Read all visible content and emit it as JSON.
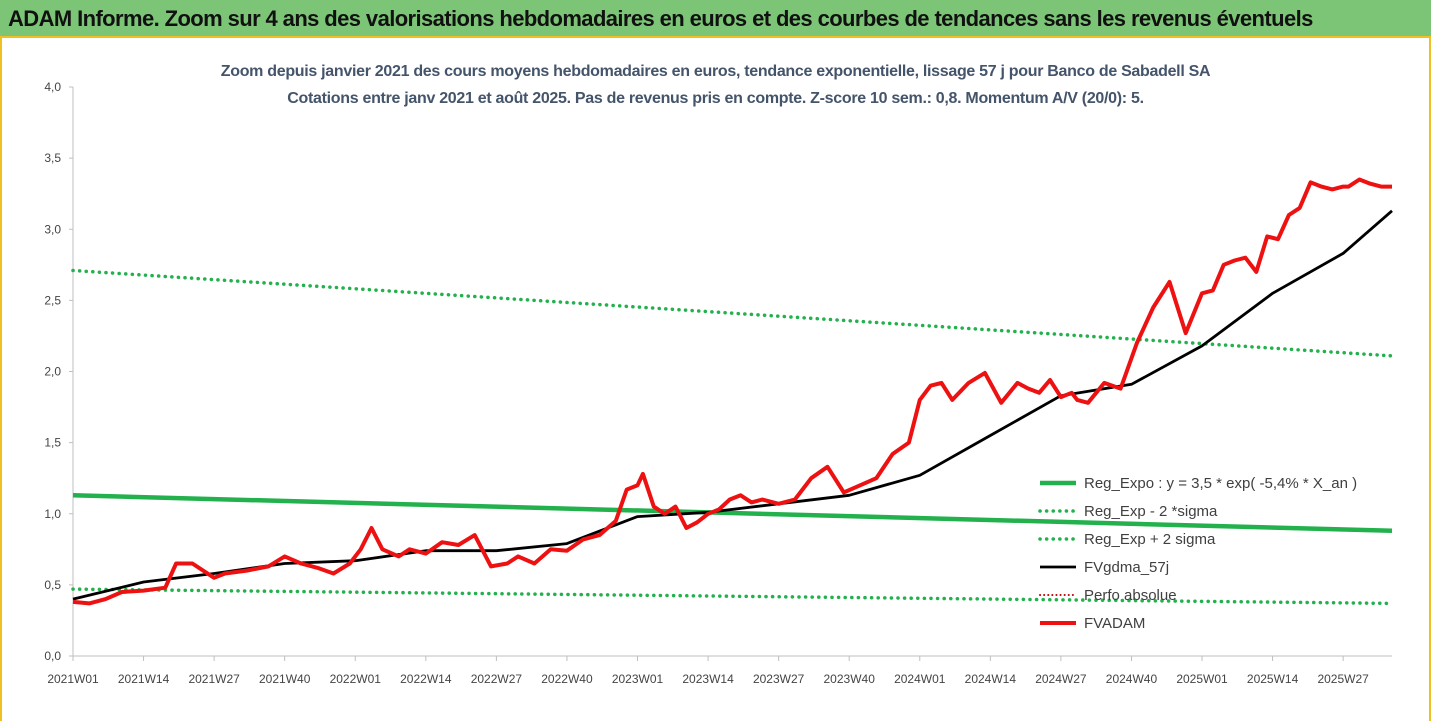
{
  "header": {
    "title": "ADAM Informe. Zoom sur 4 ans des valorisations hebdomadaires en euros et des courbes de tendances sans les revenus éventuels"
  },
  "chart_data": {
    "type": "line",
    "title": "Zoom depuis janvier 2021 des cours moyens hebdomadaires en euros, tendance exponentielle, lissage 57 j pour Banco de Sabadell SA",
    "subtitle": "Cotations entre janv 2021 et août 2025.  Pas de revenus pris en compte. Z-score 10 sem.: 0,8. Momentum A/V (20/0): 5.",
    "ylim": [
      0,
      4
    ],
    "yticks": [
      "0,0",
      "0,5",
      "1,0",
      "1,5",
      "2,0",
      "2,5",
      "3,0",
      "3,5",
      "4,0"
    ],
    "xticks": [
      "2021W01",
      "2021W14",
      "2021W27",
      "2021W40",
      "2022W01",
      "2022W14",
      "2022W27",
      "2022W40",
      "2023W01",
      "2023W14",
      "2023W27",
      "2023W40",
      "2024W01",
      "2024W14",
      "2024W27",
      "2024W40",
      "2025W01",
      "2025W14",
      "2025W27"
    ],
    "x_range_weeks": 243,
    "grid": false,
    "legend_position": "right",
    "series": [
      {
        "name": "Reg_Expo : y = 3,5 * exp( -5,4% *  X_an )",
        "color": "#22b14c",
        "style": "solid",
        "x": [
          0,
          243
        ],
        "y": [
          1.13,
          0.88
        ]
      },
      {
        "name": "Reg_Exp - 2 *sigma",
        "color": "#22b14c",
        "style": "dotted",
        "x": [
          0,
          243
        ],
        "y": [
          0.47,
          0.37
        ]
      },
      {
        "name": "Reg_Exp + 2 sigma",
        "color": "#22b14c",
        "style": "dotted",
        "x": [
          0,
          243
        ],
        "y": [
          2.71,
          2.11
        ]
      },
      {
        "name": "FVgdma_57j",
        "color": "#000000",
        "style": "solid",
        "x": [
          0,
          13,
          26,
          39,
          52,
          65,
          78,
          91,
          104,
          117,
          130,
          143,
          156,
          169,
          182,
          195,
          208,
          221,
          234,
          243
        ],
        "y": [
          0.4,
          0.52,
          0.58,
          0.65,
          0.67,
          0.74,
          0.74,
          0.79,
          0.98,
          1.01,
          1.07,
          1.13,
          1.27,
          1.55,
          1.83,
          1.91,
          2.18,
          2.55,
          2.83,
          3.13
        ]
      },
      {
        "name": "Perfo absolue",
        "color": "#c00000",
        "style": "dotted",
        "x": [],
        "y": []
      },
      {
        "name": "FVADAM",
        "color": "#ee1111",
        "style": "solid",
        "x": [
          0,
          3,
          6,
          9,
          13,
          17,
          19,
          22,
          26,
          28,
          32,
          36,
          39,
          42,
          45,
          48,
          51,
          53,
          55,
          57,
          60,
          62,
          65,
          68,
          71,
          74,
          77,
          80,
          82,
          85,
          88,
          91,
          94,
          97,
          100,
          102,
          104,
          105,
          107,
          109,
          111,
          113,
          115,
          117,
          119,
          121,
          123,
          125,
          127,
          130,
          133,
          136,
          139,
          142,
          145,
          148,
          151,
          154,
          156,
          158,
          160,
          162,
          165,
          168,
          171,
          174,
          176,
          178,
          180,
          182,
          184,
          185,
          187,
          190,
          193,
          196,
          199,
          202,
          205,
          208,
          210,
          212,
          214,
          216,
          218,
          220,
          222,
          224,
          226,
          228,
          230,
          232,
          234,
          235,
          237,
          239,
          241,
          243
        ],
        "y": [
          0.38,
          0.37,
          0.4,
          0.45,
          0.46,
          0.48,
          0.65,
          0.65,
          0.55,
          0.58,
          0.6,
          0.63,
          0.7,
          0.65,
          0.62,
          0.58,
          0.65,
          0.75,
          0.9,
          0.75,
          0.7,
          0.75,
          0.72,
          0.8,
          0.78,
          0.85,
          0.63,
          0.65,
          0.7,
          0.65,
          0.75,
          0.74,
          0.82,
          0.85,
          0.95,
          1.17,
          1.2,
          1.28,
          1.05,
          1.0,
          1.05,
          0.9,
          0.94,
          1.0,
          1.03,
          1.1,
          1.13,
          1.08,
          1.1,
          1.07,
          1.1,
          1.25,
          1.33,
          1.15,
          1.2,
          1.25,
          1.42,
          1.5,
          1.8,
          1.9,
          1.92,
          1.8,
          1.92,
          1.99,
          1.78,
          1.92,
          1.88,
          1.85,
          1.94,
          1.82,
          1.85,
          1.8,
          1.78,
          1.92,
          1.88,
          2.2,
          2.45,
          2.63,
          2.27,
          2.55,
          2.57,
          2.75,
          2.78,
          2.8,
          2.7,
          2.95,
          2.93,
          3.1,
          3.15,
          3.33,
          3.3,
          3.28,
          3.3,
          3.3,
          3.35,
          3.32,
          3.3,
          3.3
        ]
      }
    ]
  }
}
